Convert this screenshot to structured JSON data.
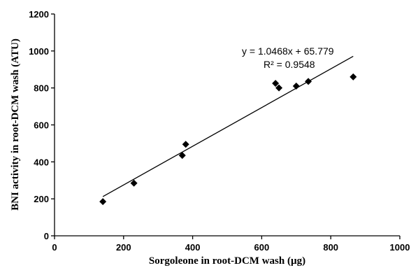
{
  "chart_data": {
    "type": "scatter",
    "xlabel": "Sorgoleone in root-DCM wash (µg)",
    "ylabel": "BNI activity in  root-DCM wash (ATU)",
    "xlim": [
      0,
      1000
    ],
    "ylim": [
      0,
      1200
    ],
    "x_ticks": [
      0,
      200,
      400,
      600,
      800,
      1000
    ],
    "y_ticks": [
      0,
      200,
      400,
      600,
      800,
      1000,
      1200
    ],
    "grid": false,
    "points": [
      {
        "x": 140,
        "y": 185
      },
      {
        "x": 230,
        "y": 285
      },
      {
        "x": 370,
        "y": 435
      },
      {
        "x": 380,
        "y": 495
      },
      {
        "x": 640,
        "y": 825
      },
      {
        "x": 650,
        "y": 800
      },
      {
        "x": 700,
        "y": 810
      },
      {
        "x": 735,
        "y": 835
      },
      {
        "x": 865,
        "y": 860
      }
    ],
    "trendline": {
      "slope": 1.0468,
      "intercept": 65.779,
      "x_range": [
        140,
        865
      ]
    },
    "annotations": {
      "equation": "y = 1.0468x + 65.779",
      "r_squared": "R² = 0.9548"
    }
  }
}
